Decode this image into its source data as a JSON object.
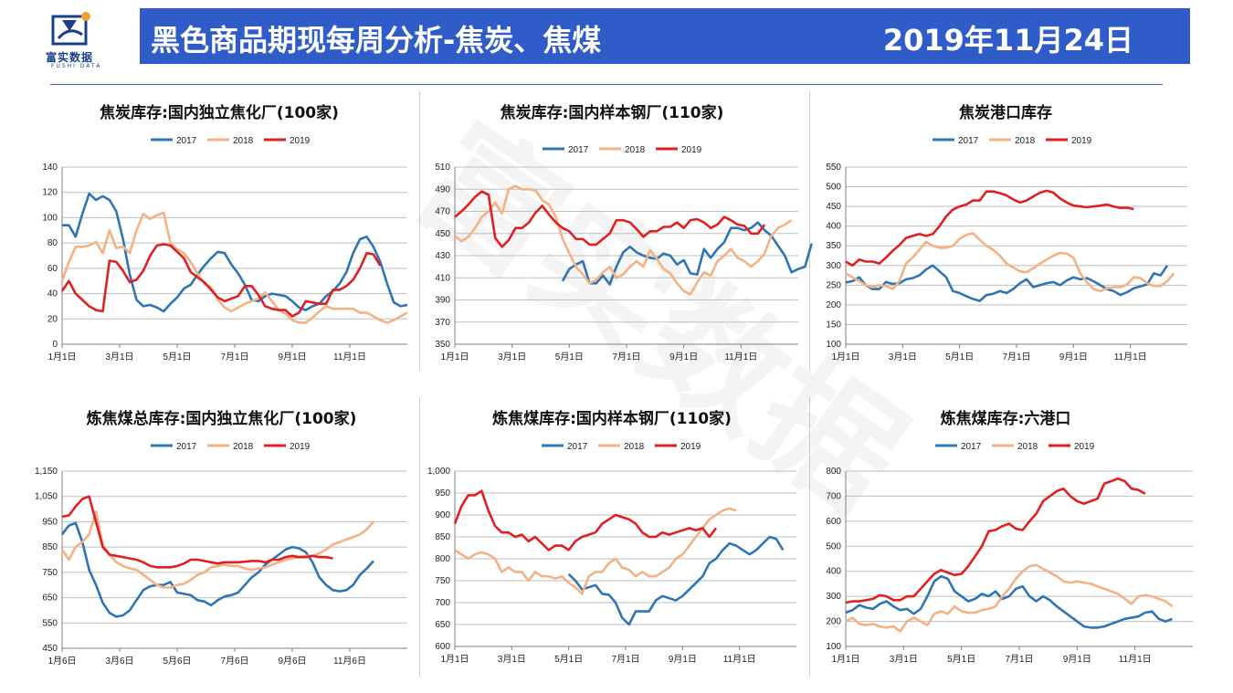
{
  "header": {
    "logo_name": "富实数据",
    "logo_en": "FUSHI DATA",
    "title": "黑色商品期现每周分析-焦炭、焦煤",
    "date": "2019年11月24日"
  },
  "watermark": "富实数据",
  "colors": {
    "s2017": "#2e75b6",
    "s2018": "#f4b183",
    "s2019": "#e02020",
    "banner": "#2f5cc8"
  },
  "chart_data": [
    {
      "type": "line",
      "title": "焦炭库存:国内独立焦化厂(100家)",
      "x_ticks": [
        "1月1日",
        "3月1日",
        "5月1日",
        "7月1日",
        "9月1日",
        "11月1日"
      ],
      "ylim": [
        0,
        140
      ],
      "y_ticks": [
        "0",
        "20",
        "40",
        "60",
        "80",
        "100",
        "120",
        "140"
      ],
      "series": [
        {
          "name": "2017",
          "start": 0,
          "values": [
            94,
            94,
            85,
            103,
            119,
            114,
            117,
            114,
            105,
            83,
            55,
            35,
            30,
            31,
            29,
            26,
            32,
            37,
            44,
            47,
            55,
            62,
            68,
            73,
            72,
            63,
            56,
            47,
            35,
            34,
            38,
            40,
            39,
            38,
            34,
            29,
            27,
            30,
            32,
            38,
            42,
            48,
            57,
            72,
            83,
            85,
            77,
            65,
            48,
            33,
            30,
            31
          ]
        },
        {
          "name": "2018",
          "start": 0,
          "values": [
            50,
            65,
            77,
            77,
            78,
            81,
            72,
            90,
            76,
            77,
            72,
            90,
            103,
            99,
            102,
            104,
            80,
            75,
            72,
            65,
            56,
            48,
            45,
            35,
            29,
            26,
            29,
            32,
            34,
            36,
            41,
            34,
            27,
            24,
            19,
            17,
            17,
            21,
            26,
            30,
            28,
            28,
            28,
            28,
            25,
            25,
            22,
            19,
            17,
            19,
            22,
            25
          ]
        },
        {
          "name": "2019",
          "start": 0,
          "values": [
            42,
            50,
            40,
            35,
            30,
            27,
            26,
            66,
            65,
            58,
            49,
            51,
            58,
            70,
            78,
            79,
            78,
            73,
            68,
            57,
            53,
            49,
            43,
            37,
            34,
            36,
            38,
            46,
            46,
            39,
            30,
            28,
            27,
            27,
            22,
            25,
            34,
            33,
            32,
            32,
            43,
            43,
            46,
            51,
            60,
            72,
            71,
            62
          ]
        }
      ]
    },
    {
      "type": "line",
      "title": "焦炭库存:国内样本钢厂(110家)",
      "x_ticks": [
        "1月1日",
        "3月1日",
        "5月1日",
        "7月1日",
        "9月1日",
        "11月1日"
      ],
      "ylim": [
        350,
        510
      ],
      "y_ticks": [
        "350",
        "370",
        "390",
        "410",
        "430",
        "450",
        "470",
        "490",
        "510"
      ],
      "series": [
        {
          "name": "2017",
          "start": 16,
          "values": [
            407,
            418,
            422,
            425,
            405,
            405,
            412,
            404,
            420,
            433,
            438,
            433,
            430,
            428,
            427,
            432,
            430,
            422,
            426,
            414,
            413,
            436,
            428,
            436,
            442,
            455,
            455,
            453,
            455,
            460,
            453,
            448,
            439,
            430,
            415,
            418,
            420,
            441
          ]
        },
        {
          "name": "2018",
          "start": 0,
          "values": [
            448,
            443,
            447,
            455,
            465,
            470,
            478,
            468,
            490,
            493,
            490,
            490,
            489,
            480,
            476,
            465,
            445,
            432,
            420,
            413,
            405,
            408,
            415,
            420,
            410,
            413,
            420,
            425,
            420,
            435,
            427,
            418,
            414,
            405,
            398,
            395,
            406,
            415,
            412,
            425,
            430,
            436,
            428,
            425,
            420,
            425,
            432,
            448,
            455,
            458,
            462
          ]
        },
        {
          "name": "2019",
          "start": 0,
          "values": [
            465,
            470,
            476,
            483,
            488,
            485,
            446,
            438,
            444,
            455,
            455,
            460,
            469,
            475,
            467,
            460,
            455,
            452,
            445,
            445,
            440,
            440,
            445,
            450,
            462,
            462,
            460,
            454,
            447,
            452,
            452,
            456,
            456,
            460,
            455,
            462,
            463,
            460,
            455,
            458,
            465,
            462,
            458,
            457,
            450,
            450,
            458
          ]
        }
      ]
    },
    {
      "type": "line",
      "title": "焦炭港口库存",
      "x_ticks": [
        "1月1日",
        "3月1日",
        "5月1日",
        "7月1日",
        "9月1日",
        "11月1日"
      ],
      "ylim": [
        100,
        550
      ],
      "y_ticks": [
        "100",
        "150",
        "200",
        "250",
        "300",
        "350",
        "400",
        "450",
        "500",
        "550"
      ],
      "series": [
        {
          "name": "2017",
          "start": 0,
          "values": [
            257,
            260,
            270,
            250,
            240,
            240,
            258,
            253,
            255,
            265,
            268,
            275,
            290,
            300,
            285,
            270,
            235,
            230,
            222,
            215,
            210,
            225,
            228,
            235,
            230,
            240,
            255,
            265,
            245,
            250,
            255,
            258,
            250,
            262,
            270,
            265,
            268,
            260,
            250,
            240,
            235,
            225,
            232,
            242,
            247,
            252,
            280,
            275,
            300
          ]
        },
        {
          "name": "2018",
          "start": 0,
          "values": [
            280,
            270,
            260,
            250,
            245,
            250,
            248,
            240,
            260,
            305,
            320,
            340,
            360,
            350,
            345,
            345,
            350,
            368,
            378,
            382,
            365,
            350,
            340,
            325,
            305,
            295,
            285,
            283,
            293,
            305,
            315,
            325,
            332,
            330,
            320,
            280,
            258,
            240,
            235,
            242,
            245,
            245,
            252,
            270,
            268,
            255,
            248,
            248,
            260,
            280
          ]
        },
        {
          "name": "2019",
          "start": 0,
          "values": [
            310,
            300,
            315,
            310,
            310,
            305,
            320,
            337,
            352,
            370,
            375,
            380,
            375,
            380,
            400,
            425,
            442,
            450,
            455,
            465,
            465,
            488,
            488,
            484,
            478,
            468,
            460,
            465,
            475,
            485,
            490,
            485,
            470,
            460,
            452,
            450,
            448,
            450,
            452,
            455,
            450,
            446,
            447,
            443
          ]
        }
      ]
    },
    {
      "type": "line",
      "title": "炼焦煤总库存:国内独立焦化厂(100家)",
      "x_ticks": [
        "1月6日",
        "3月6日",
        "5月6日",
        "7月6日",
        "9月6日",
        "11月6日"
      ],
      "ylim": [
        450,
        1150
      ],
      "y_ticks": [
        "450",
        "550",
        "650",
        "750",
        "850",
        "950",
        "1,050",
        "1,150"
      ],
      "series": [
        {
          "name": "2017",
          "start": 0,
          "values": [
            900,
            935,
            945,
            870,
            760,
            700,
            630,
            590,
            575,
            580,
            600,
            640,
            680,
            695,
            700,
            700,
            712,
            670,
            665,
            660,
            640,
            635,
            620,
            640,
            655,
            660,
            670,
            700,
            730,
            750,
            780,
            800,
            820,
            840,
            850,
            845,
            830,
            790,
            730,
            700,
            680,
            675,
            680,
            700,
            740,
            765,
            795
          ]
        },
        {
          "name": "2018",
          "start": 0,
          "values": [
            840,
            800,
            850,
            870,
            900,
            990,
            860,
            820,
            790,
            775,
            765,
            760,
            740,
            720,
            700,
            690,
            690,
            700,
            705,
            720,
            740,
            750,
            770,
            775,
            780,
            775,
            775,
            765,
            760,
            765,
            770,
            780,
            790,
            800,
            805,
            810,
            815,
            815,
            825,
            840,
            860,
            870,
            880,
            890,
            900,
            920,
            950
          ]
        },
        {
          "name": "2019",
          "start": 0,
          "values": [
            970,
            975,
            1010,
            1040,
            1050,
            950,
            850,
            820,
            815,
            810,
            805,
            800,
            790,
            775,
            770,
            770,
            770,
            775,
            785,
            800,
            800,
            795,
            790,
            785,
            790,
            790,
            790,
            792,
            795,
            795,
            790,
            800,
            800,
            810,
            815,
            810,
            810,
            815,
            810,
            810,
            805
          ]
        }
      ]
    },
    {
      "type": "line",
      "title": "炼焦煤库存:国内样本钢厂(110家)",
      "x_ticks": [
        "1月1日",
        "3月1日",
        "5月1日",
        "7月1日",
        "9月1日",
        "11月1日"
      ],
      "ylim": [
        600,
        1000
      ],
      "y_ticks": [
        "600",
        "650",
        "700",
        "750",
        "800",
        "850",
        "900",
        "950",
        "1,000"
      ],
      "series": [
        {
          "name": "2017",
          "start": 17,
          "values": [
            765,
            750,
            730,
            735,
            740,
            720,
            718,
            700,
            665,
            650,
            680,
            680,
            680,
            705,
            715,
            710,
            705,
            715,
            730,
            745,
            760,
            790,
            800,
            820,
            835,
            830,
            820,
            810,
            820,
            835,
            850,
            845,
            820
          ]
        },
        {
          "name": "2018",
          "start": 0,
          "values": [
            820,
            810,
            800,
            810,
            815,
            810,
            800,
            770,
            780,
            770,
            770,
            750,
            770,
            760,
            760,
            755,
            760,
            745,
            735,
            720,
            760,
            770,
            770,
            790,
            800,
            780,
            775,
            760,
            770,
            760,
            760,
            770,
            780,
            800,
            810,
            830,
            850,
            870,
            890,
            900,
            910,
            915,
            910
          ]
        },
        {
          "name": "2019",
          "start": 0,
          "values": [
            880,
            920,
            945,
            945,
            955,
            910,
            875,
            860,
            860,
            850,
            855,
            840,
            850,
            835,
            820,
            830,
            830,
            820,
            840,
            850,
            855,
            860,
            880,
            890,
            900,
            895,
            890,
            880,
            860,
            850,
            850,
            860,
            855,
            860,
            865,
            870,
            865,
            870,
            850,
            870
          ]
        }
      ]
    },
    {
      "type": "line",
      "title": "炼焦煤库存:六港口",
      "x_ticks": [
        "1月1日",
        "3月1日",
        "5月1日",
        "7月1日",
        "9月1日",
        "11月1日"
      ],
      "ylim": [
        100,
        800
      ],
      "y_ticks": [
        "100",
        "200",
        "300",
        "400",
        "500",
        "600",
        "700",
        "800"
      ],
      "series": [
        {
          "name": "2017",
          "start": 0,
          "values": [
            235,
            245,
            265,
            255,
            250,
            270,
            280,
            260,
            245,
            250,
            230,
            250,
            300,
            360,
            380,
            370,
            320,
            300,
            280,
            290,
            310,
            300,
            320,
            290,
            300,
            330,
            340,
            300,
            280,
            300,
            285,
            260,
            240,
            220,
            200,
            180,
            175,
            175,
            180,
            190,
            200,
            210,
            215,
            220,
            235,
            240,
            210,
            200,
            210
          ]
        },
        {
          "name": "2018",
          "start": 0,
          "values": [
            200,
            215,
            190,
            185,
            190,
            180,
            175,
            180,
            160,
            200,
            215,
            200,
            185,
            230,
            240,
            230,
            260,
            240,
            235,
            235,
            245,
            250,
            260,
            300,
            330,
            370,
            400,
            420,
            425,
            410,
            395,
            380,
            360,
            355,
            360,
            355,
            350,
            340,
            330,
            320,
            310,
            290,
            270,
            300,
            305,
            300,
            290,
            280,
            260
          ]
        },
        {
          "name": "2019",
          "start": 0,
          "values": [
            275,
            280,
            280,
            285,
            290,
            305,
            300,
            285,
            285,
            300,
            300,
            330,
            360,
            390,
            405,
            395,
            385,
            390,
            420,
            460,
            500,
            560,
            565,
            580,
            590,
            570,
            565,
            600,
            630,
            680,
            700,
            720,
            730,
            700,
            680,
            670,
            680,
            690,
            750,
            760,
            770,
            760,
            730,
            725,
            710
          ]
        }
      ]
    }
  ]
}
